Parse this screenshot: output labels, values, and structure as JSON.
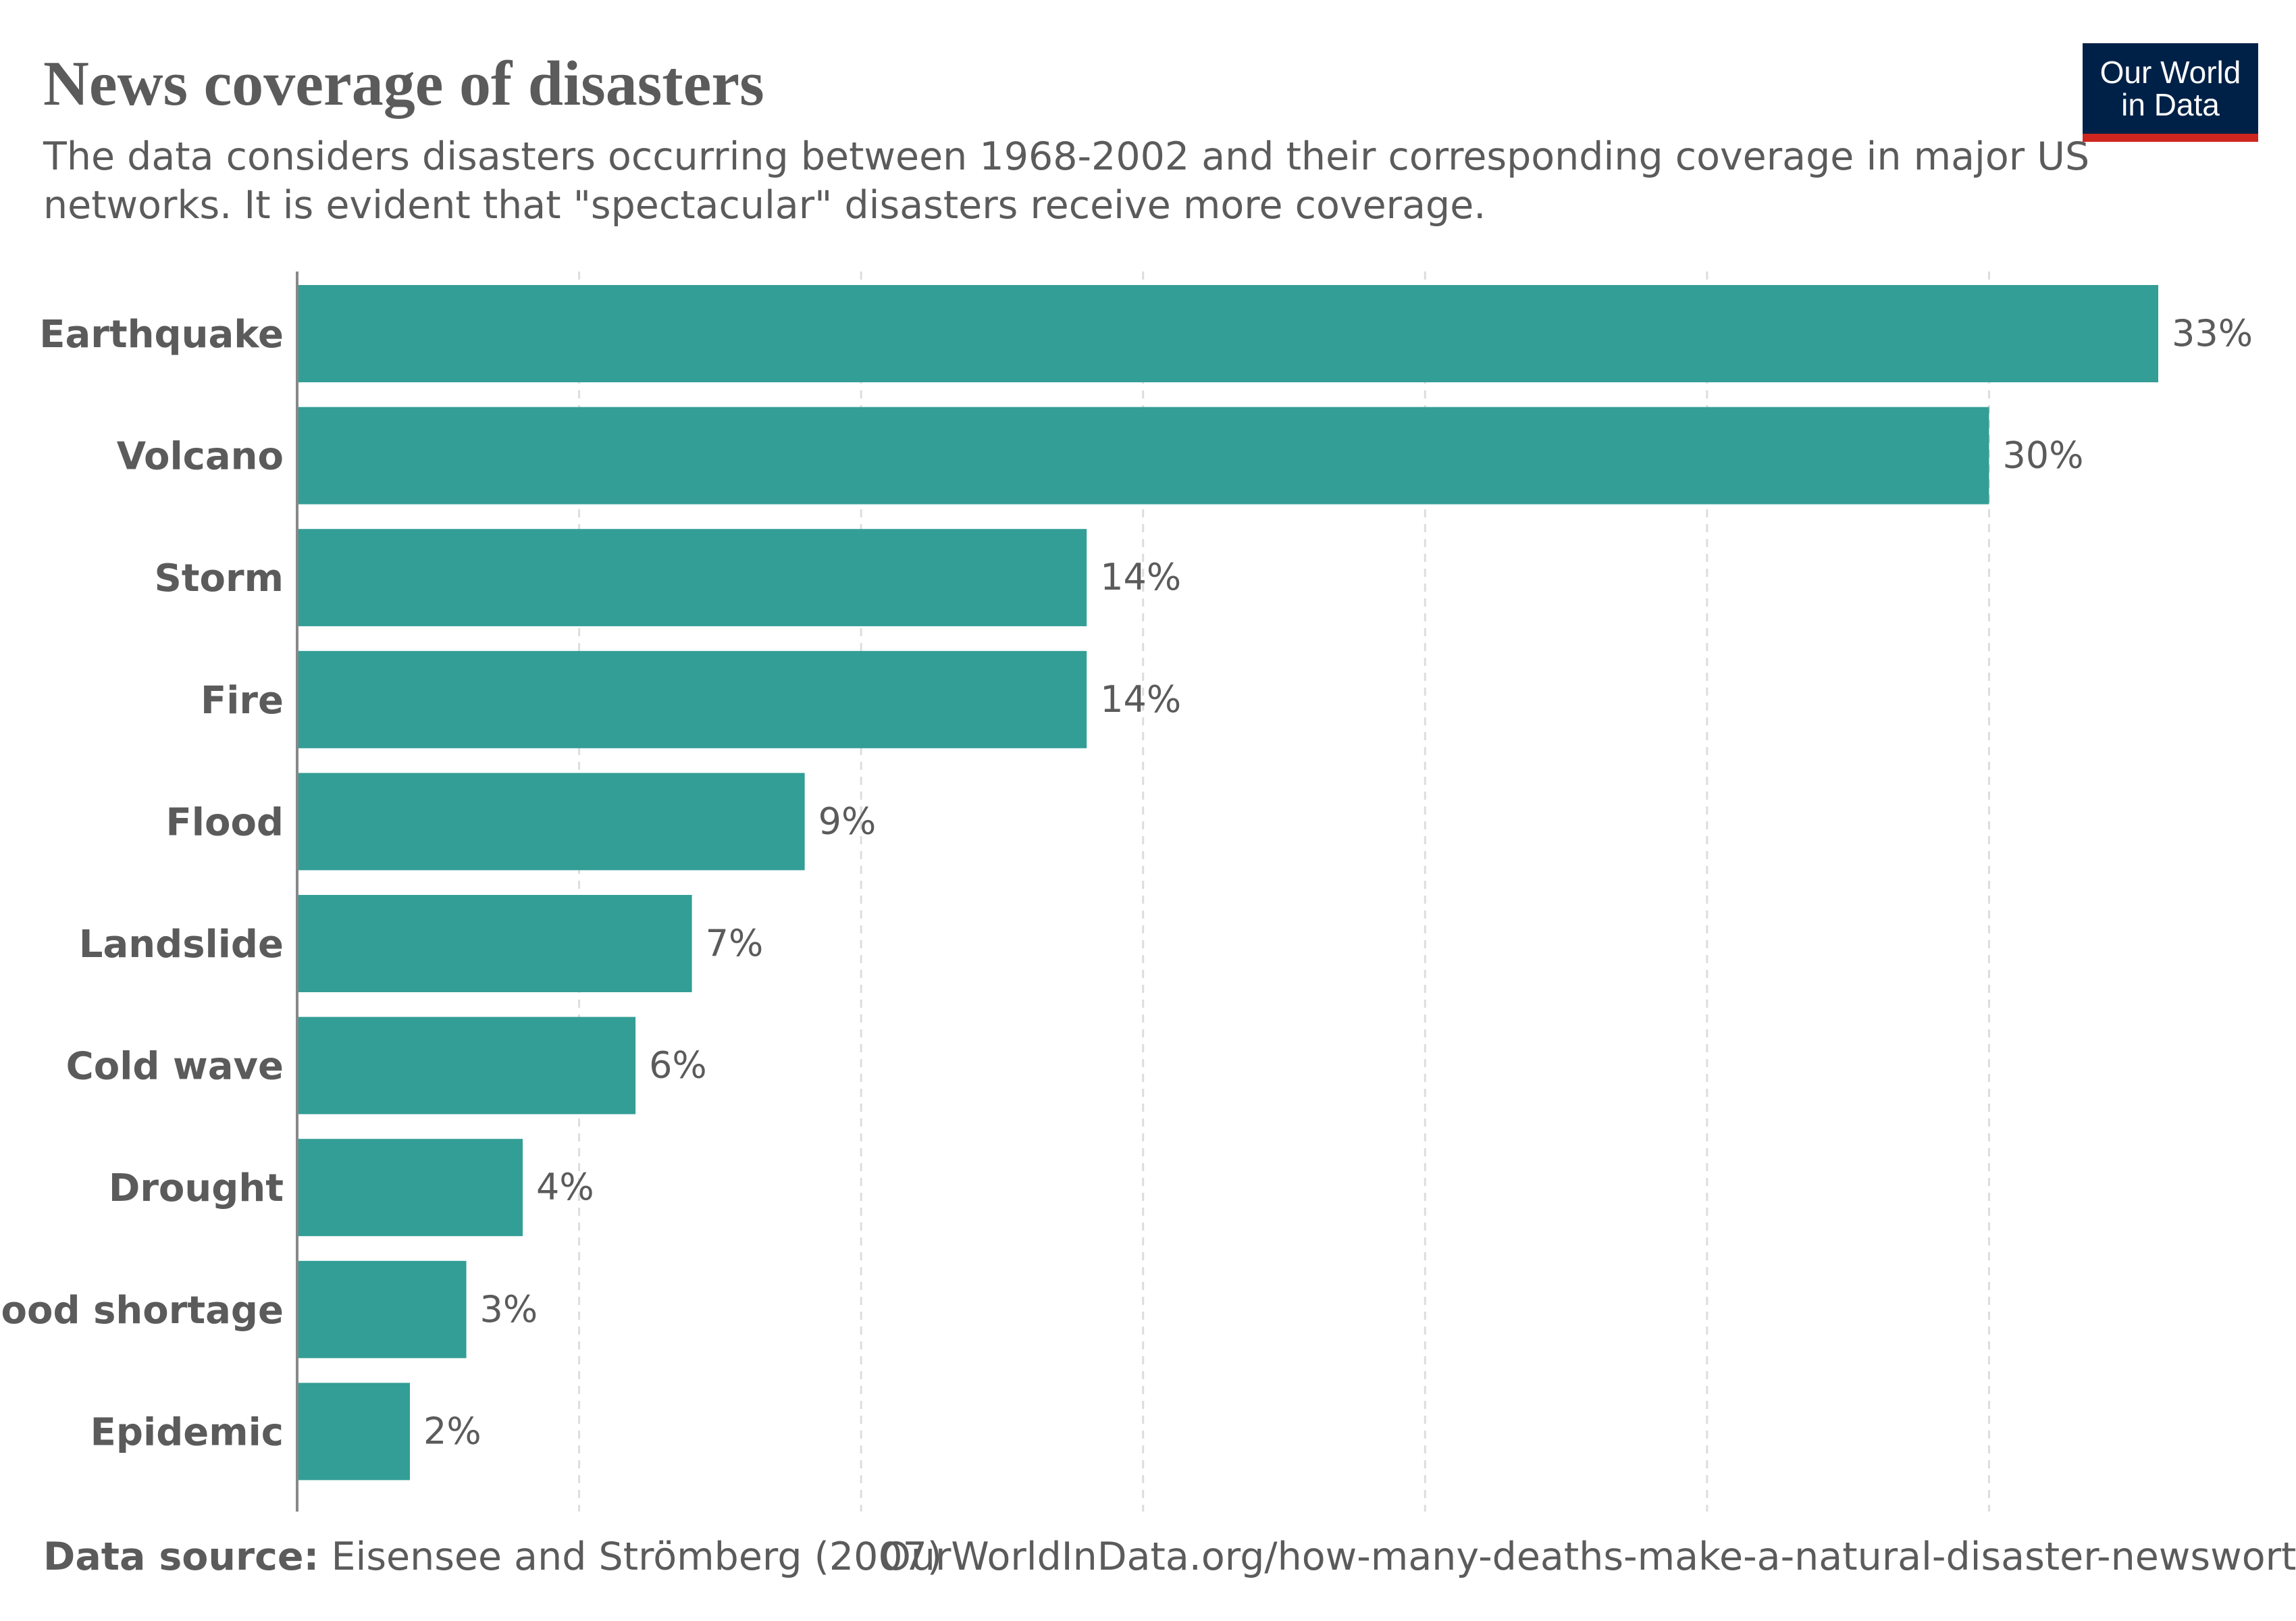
{
  "header": {
    "title": "News coverage of disasters",
    "subtitle": "The data considers disasters occurring between 1968-2002 and their corresponding coverage in major US networks. It is evident that \"spectacular\" disasters receive more coverage."
  },
  "logo": {
    "line1": "Our World",
    "line2": "in Data"
  },
  "footer": {
    "source_label": "Data source:",
    "source_text": "Eisensee and Strömberg (2007)",
    "url": "OurWorldInData.org/how-many-deaths-make-a-natural-disaster-newsworthy |"
  },
  "colors": {
    "bar": "#339e96",
    "text": "#5b5b5b",
    "grid": "#dddddd",
    "axis": "#888888",
    "logo_bg": "#002147",
    "logo_accent": "#ce261e"
  },
  "chart_data": {
    "type": "bar",
    "orientation": "horizontal",
    "categories": [
      "Earthquake",
      "Volcano",
      "Storm",
      "Fire",
      "Flood",
      "Landslide",
      "Cold wave",
      "Drought",
      "Food shortage",
      "Epidemic"
    ],
    "values": [
      33,
      30,
      14,
      14,
      9,
      7,
      6,
      4,
      3,
      2
    ],
    "value_labels": [
      "33%",
      "30%",
      "14%",
      "14%",
      "9%",
      "7%",
      "6%",
      "4%",
      "3%",
      "2%"
    ],
    "xlim": [
      0,
      33
    ],
    "grid": true,
    "gridlines": [
      5,
      10,
      15,
      20,
      25,
      30
    ]
  }
}
